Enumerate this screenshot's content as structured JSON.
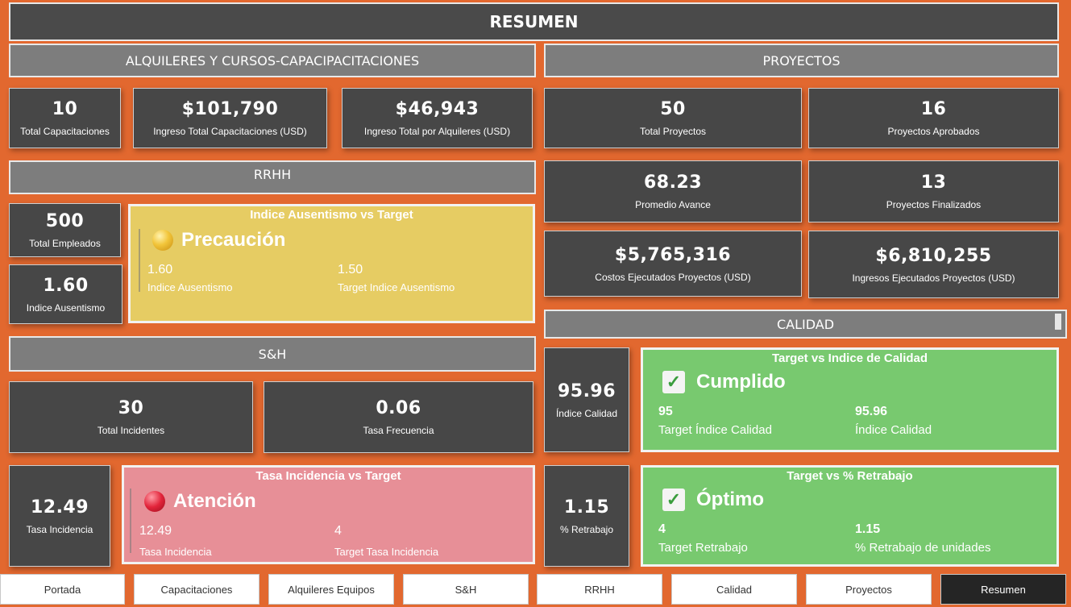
{
  "header": {
    "title": "RESUMEN"
  },
  "sections": {
    "rentals": "ALQUILERES Y CURSOS-CAPACIPACITACIONES",
    "projects": "PROYECTOS",
    "hr": "RRHH",
    "sh": "S&H",
    "quality": "CALIDAD"
  },
  "rentals": {
    "total_trainings": {
      "value": "10",
      "label": "Total Capacitaciones"
    },
    "training_income": {
      "value": "$101,790",
      "label": "Ingreso Total Capacitaciones (USD)"
    },
    "rental_income": {
      "value": "$46,943",
      "label": "Ingreso Total por Alquileres (USD)"
    }
  },
  "projects": {
    "total": {
      "value": "50",
      "label": "Total Proyectos"
    },
    "approved": {
      "value": "16",
      "label": "Proyectos Aprobados"
    },
    "avg_progress": {
      "value": "68.23",
      "label": "Promedio Avance"
    },
    "finished": {
      "value": "13",
      "label": "Proyectos Finalizados"
    },
    "costs": {
      "value": "$5,765,316",
      "label": "Costos Ejecutados Proyectos (USD)"
    },
    "income": {
      "value": "$6,810,255",
      "label": "Ingresos Ejecutados Proyectos (USD)"
    }
  },
  "hr": {
    "employees": {
      "value": "500",
      "label": "Total Empleados"
    },
    "absenteeism": {
      "value": "1.60",
      "label": "Indice Ausentismo"
    },
    "kpi": {
      "title": "Indice Ausentismo vs Target",
      "status": "Precaución",
      "status_color": "#e8b92a",
      "actual_value": "1.60",
      "actual_label": "Indice Ausentismo",
      "target_value": "1.50",
      "target_label": "Target Indice Ausentismo"
    }
  },
  "sh": {
    "incidents": {
      "value": "30",
      "label": "Total Incidentes"
    },
    "frequency": {
      "value": "0.06",
      "label": "Tasa Frecuencia"
    },
    "incidence": {
      "value": "12.49",
      "label": "Tasa Incidencia"
    },
    "kpi": {
      "title": "Tasa Incidencia vs Target",
      "status": "Atención",
      "status_color": "#e2243a",
      "actual_value": "12.49",
      "actual_label": "Tasa Incidencia",
      "target_value": "4",
      "target_label": "Target Tasa Incidencia"
    }
  },
  "quality": {
    "index": {
      "value": "95.96",
      "label": "Índice Calidad"
    },
    "rework": {
      "value": "1.15",
      "label": "% Retrabajo"
    },
    "kpi_index": {
      "title": "Target vs Indice de Calidad",
      "status": "Cumplido",
      "target_value": "95",
      "target_label": "Target Índice Calidad",
      "actual_value": "95.96",
      "actual_label": "Índice Calidad"
    },
    "kpi_rework": {
      "title": "Target vs % Retrabajo",
      "status": "Óptimo",
      "target_value": "4",
      "target_label": "Target Retrabajo",
      "actual_value": "1.15",
      "actual_label": "% Retrabajo de unidades"
    }
  },
  "nav": [
    "Portada",
    "Capacitaciones",
    "Alquileres Equipos",
    "S&H",
    "RRHH",
    "Calidad",
    "Proyectos",
    "Resumen"
  ],
  "colors": {
    "background": "#e2682f",
    "card": "#474747",
    "section": "#7d7d7d"
  }
}
